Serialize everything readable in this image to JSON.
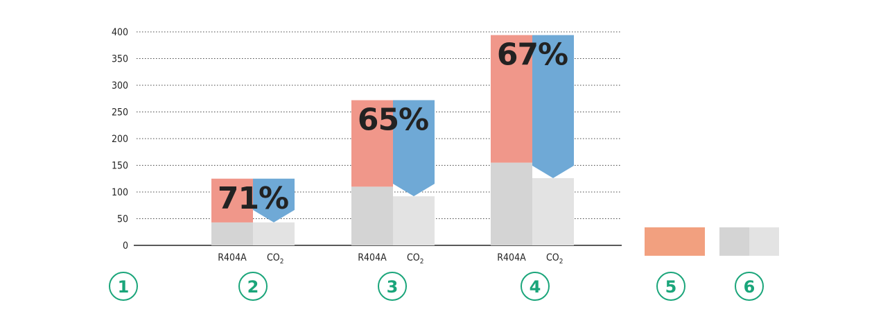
{
  "chart_data": {
    "type": "bar",
    "ylim": [
      0,
      400
    ],
    "yticks": [
      "0",
      "50",
      "100",
      "150",
      "200",
      "250",
      "300",
      "350",
      "400"
    ],
    "grid": "dotted horizontal",
    "series_labels": [
      "R404A",
      "CO",
      "2"
    ],
    "groups": [
      {
        "r404a_total": 125,
        "r404a_base": 43,
        "co2_total": 125,
        "co2_base": 43,
        "co2_arrow_tip": 43,
        "percent": "71%"
      },
      {
        "r404a_total": 272,
        "r404a_base": 110,
        "co2_total": 272,
        "co2_base": 92,
        "co2_arrow_tip": 92,
        "percent": "65%"
      },
      {
        "r404a_total": 394,
        "r404a_base": 155,
        "co2_total": 394,
        "co2_base": 126,
        "co2_arrow_tip": 126,
        "percent": "67%"
      }
    ],
    "colors": {
      "r404a_top": "#f0978a",
      "co2_top": "#6fa9d6",
      "r404a_base": "#d4d4d4",
      "co2_base": "#e3e3e3",
      "legend_orange": "#f2a07f",
      "circle": "#1aa57a"
    }
  },
  "circle_labels": [
    "1",
    "2",
    "3",
    "4",
    "5",
    "6"
  ]
}
